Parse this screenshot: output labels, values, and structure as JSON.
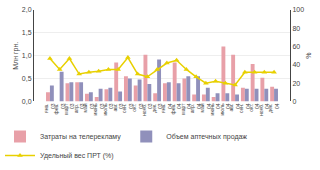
{
  "chart_data": {
    "type": "bar",
    "categories": [
      "янв.\n03",
      "фев.\n03",
      "март\n03",
      "апр.\n03",
      "май\n03",
      "июнь\n03",
      "июль\n03",
      "авг.\n03",
      "сен.\n03",
      "окт.\n03",
      "нояб.\n03",
      "дек.\n03",
      "янв.\n04",
      "фев.\n04",
      "март\n04",
      "апр.\n04",
      "май\n04",
      "июнь\n04",
      "июль\n04",
      "авг.\n04",
      "сен.\n04",
      "окт.\n04",
      "нояб.\n04",
      "дек.\n04"
    ],
    "series": [
      {
        "name": "Затраты на телерекламу",
        "color": "#e8a0a8",
        "type": "bar",
        "values": [
          0.2,
          0.0,
          0.4,
          0.42,
          0.17,
          0.1,
          0.27,
          0.85,
          0.55,
          0.35,
          1.02,
          0.18,
          0.4,
          0.85,
          0.5,
          0.15,
          0.15,
          0.1,
          1.2,
          1.02,
          0.3,
          0.82,
          0.52,
          0.32
        ]
      },
      {
        "name": "Объем аптечных продаж",
        "color": "#9090bb",
        "type": "bar",
        "values": [
          0.35,
          0.65,
          0.42,
          0.42,
          0.2,
          0.28,
          0.3,
          0.22,
          0.5,
          0.48,
          0.38,
          0.92,
          0.42,
          0.4,
          0.55,
          0.55,
          0.3,
          0.18,
          0.18,
          0.15,
          0.28,
          0.28,
          0.28,
          0.28
        ]
      },
      {
        "name": "Удельный вес ПРТ (%)",
        "color": "#e8d000",
        "type": "line",
        "marker": "triangle",
        "axis": "y2",
        "values": [
          47,
          35,
          47,
          30,
          32,
          33,
          35,
          35,
          48,
          30,
          27,
          35,
          42,
          45,
          35,
          27,
          20,
          22,
          20,
          18,
          32,
          32,
          32,
          32
        ]
      }
    ],
    "ylabel": "Млн грн.",
    "y2label": "%",
    "ylim": [
      0.0,
      2.0
    ],
    "yticks": [
      {
        "value": 0.0,
        "label": "0,0"
      },
      {
        "value": 0.5,
        "label": "0,5"
      },
      {
        "value": 1.0,
        "label": "1,0"
      },
      {
        "value": 1.5,
        "label": "1,5"
      },
      {
        "value": 2.0,
        "label": "2,0"
      }
    ],
    "y2lim": [
      0,
      100
    ],
    "y2ticks": [
      0,
      20,
      40,
      60,
      80,
      100
    ],
    "grid": true,
    "legend": "bottom left"
  }
}
